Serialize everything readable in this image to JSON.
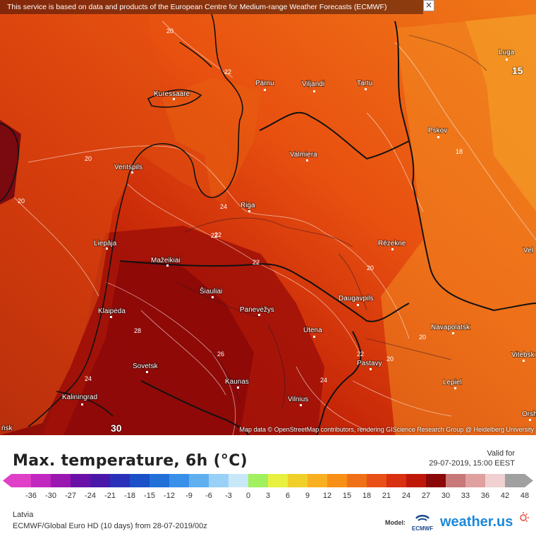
{
  "banner": "This service is based on data and products of the European Centre for Medium-range Weather Forecasts (ECMWF)",
  "close_glyph": "×",
  "attribution": "Map data © OpenStreetMap contributors, rendering GIScience Research Group @ Heidelberg University",
  "cities": [
    {
      "name": "Kuressaare"
    },
    {
      "name": "Pärnu"
    },
    {
      "name": "Viljandi"
    },
    {
      "name": "Tartu"
    },
    {
      "name": "Luga"
    },
    {
      "name": "Pskov"
    },
    {
      "name": "Valmiera"
    },
    {
      "name": "Ventspils"
    },
    {
      "name": "Riga"
    },
    {
      "name": "Liepāja"
    },
    {
      "name": "Rēzekne"
    },
    {
      "name": "Mažeikiai"
    },
    {
      "name": "Šiauliai"
    },
    {
      "name": "Panevėžys"
    },
    {
      "name": "Daugavpils"
    },
    {
      "name": "Klaipėda"
    },
    {
      "name": "Utena"
    },
    {
      "name": "Navapolatsk"
    },
    {
      "name": "Sovetsk"
    },
    {
      "name": "Pastavy"
    },
    {
      "name": "Vitebsk"
    },
    {
      "name": "Kaunas"
    },
    {
      "name": "Lepiel"
    },
    {
      "name": "Kaliningrad"
    },
    {
      "name": "Vilnius"
    },
    {
      "name": "Orsh"
    },
    {
      "name": "Vel"
    },
    {
      "name": "ńsk"
    }
  ],
  "contour_labels": [
    "20",
    "22",
    "20",
    "20",
    "22",
    "24",
    "22",
    "22",
    "20",
    "18",
    "20",
    "22",
    "24",
    "26",
    "28",
    "24",
    "20"
  ],
  "map_values": {
    "top_right": "15",
    "bottom_left": "30"
  },
  "legend": {
    "title": "Max. temperature, 6h (°C)",
    "valid_label": "Valid for",
    "valid_value": "29-07-2019, 15:00 EEST",
    "ticks": [
      "-36",
      "-30",
      "-27",
      "-24",
      "-21",
      "-18",
      "-15",
      "-12",
      "-9",
      "-6",
      "-3",
      "0",
      "3",
      "6",
      "9",
      "12",
      "15",
      "18",
      "21",
      "24",
      "27",
      "30",
      "33",
      "36",
      "42",
      "48"
    ],
    "colors": [
      "#e040c8",
      "#c028c0",
      "#9a18b0",
      "#6a10a8",
      "#4a18a8",
      "#2a30b8",
      "#1a50c8",
      "#2070d8",
      "#3890e8",
      "#60b0f0",
      "#98d0f8",
      "#c8e8f8",
      "#a0f060",
      "#e8f040",
      "#f0d028",
      "#f8b020",
      "#f89018",
      "#f07018",
      "#e85018",
      "#d83010",
      "#c01808",
      "#8a0808",
      "#c87878",
      "#e0a0a0",
      "#f0d0d0",
      "#a0a0a0"
    ],
    "region": "Latvia",
    "model_info": "ECMWF/Global Euro HD (10 days) from 28-07-2019/00z",
    "model_label": "Model:",
    "ecmwf_text": "ECMWF",
    "brand": "weather.us"
  }
}
